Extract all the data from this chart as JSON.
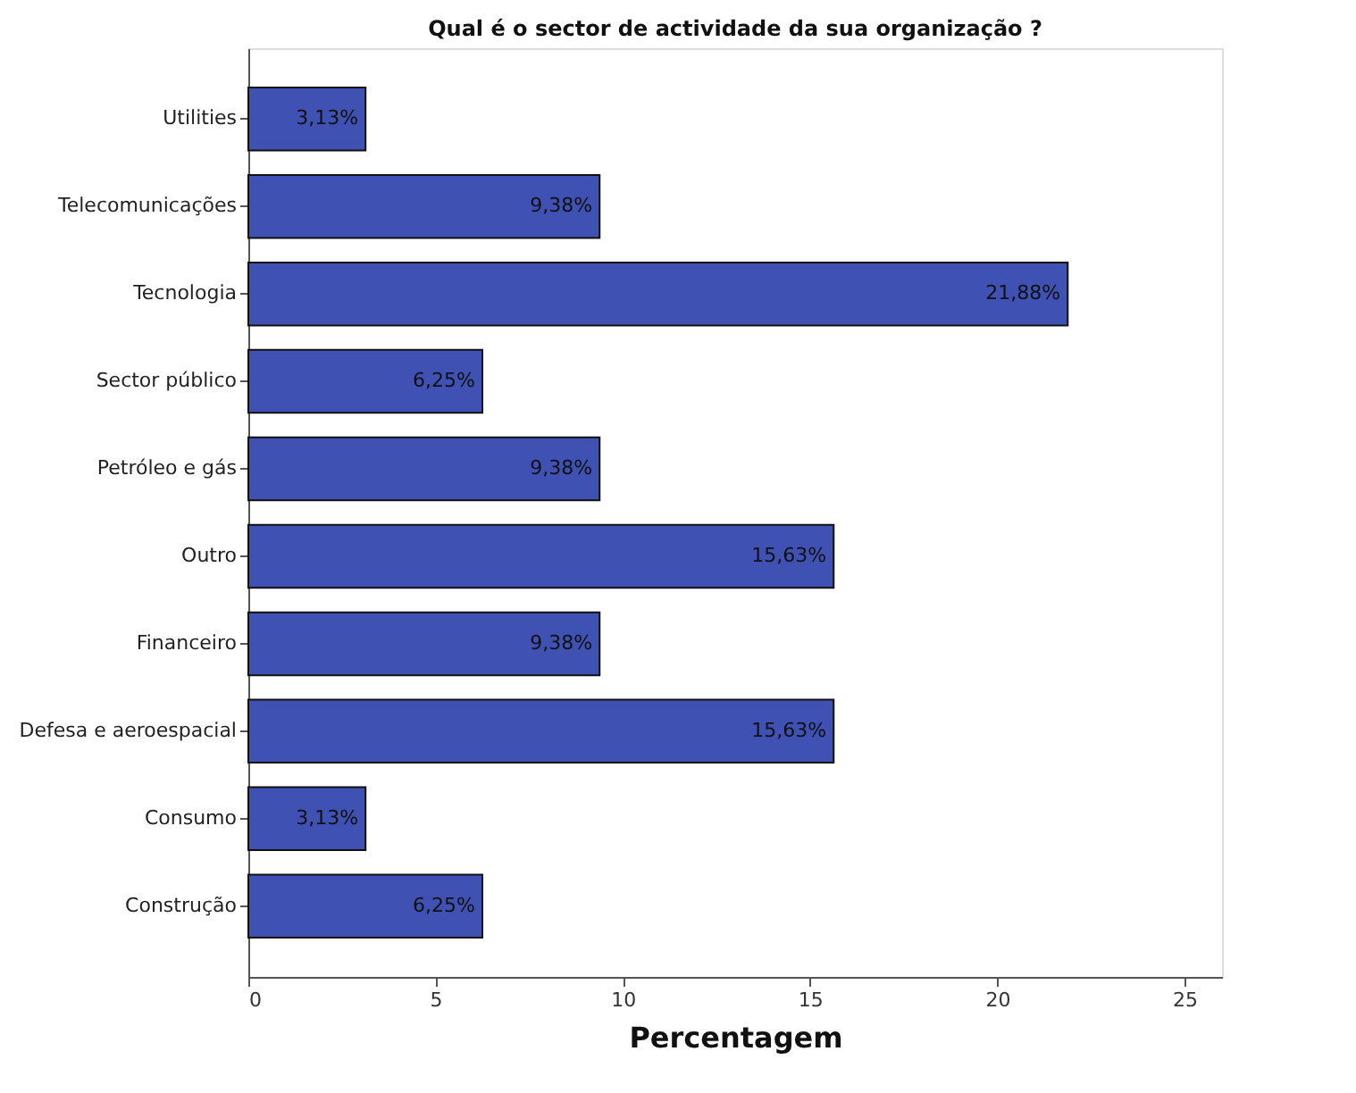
{
  "chart_data": {
    "type": "bar",
    "orientation": "horizontal",
    "title": "Qual é o sector de actividade da sua organização ?",
    "xlabel": "Percentagem",
    "categories": [
      "Utilities",
      "Telecomunicações",
      "Tecnologia",
      "Sector público",
      "Petróleo e gás",
      "Outro",
      "Financeiro",
      "Defesa e aeroespacial",
      "Consumo",
      "Construção"
    ],
    "values": [
      3.13,
      9.38,
      21.88,
      6.25,
      9.38,
      15.63,
      9.38,
      15.63,
      3.13,
      6.25
    ],
    "value_labels": [
      "3,13%",
      "9,38%",
      "21,88%",
      "6,25%",
      "9,38%",
      "15,63%",
      "9,38%",
      "15,63%",
      "3,13%",
      "6,25%"
    ],
    "color": "#3f51b3",
    "xlim": [
      0,
      26
    ],
    "xticks": [
      0,
      5,
      10,
      15,
      20,
      25
    ],
    "grid": false
  }
}
